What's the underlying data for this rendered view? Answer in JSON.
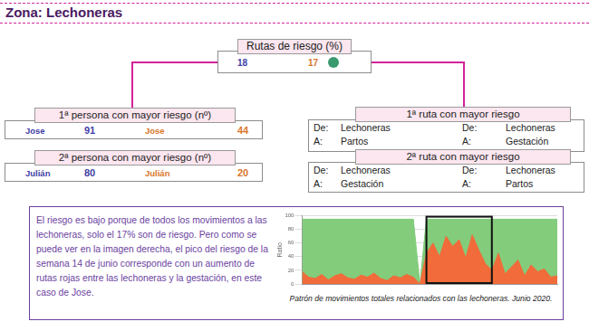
{
  "header": {
    "title": "Zona: Lechoneras"
  },
  "risk_routes": {
    "label": "Rutas de riesgo (%)",
    "values": [
      {
        "value": 18,
        "color": "#3f3fa6"
      },
      {
        "value": 17,
        "color": "#d9762b"
      }
    ],
    "indicator_color": "#3a9a6e"
  },
  "persons": [
    {
      "label": "1ª persona con mayor riesgo (nº)",
      "entries": [
        {
          "name": "Jose",
          "value": 91,
          "color": "#3f3fa6"
        },
        {
          "name": "Jose",
          "value": 44,
          "color": "#d9762b"
        }
      ]
    },
    {
      "label": "2ª persona con mayor riesgo (nº)",
      "entries": [
        {
          "name": "Julián",
          "value": 80,
          "color": "#3f3fa6"
        },
        {
          "name": "Julián",
          "value": 20,
          "color": "#d9762b"
        }
      ]
    }
  ],
  "routes": [
    {
      "label": "1ª ruta con mayor riesgo",
      "entries": [
        {
          "from_label": "De:",
          "from": "Lechoneras",
          "to_label": "A:",
          "to": "Partos"
        },
        {
          "from_label": "De:",
          "from": "Lechoneras",
          "to_label": "A:",
          "to": "Gestación"
        }
      ]
    },
    {
      "label": "2ª ruta con mayor riesgo",
      "entries": [
        {
          "from_label": "De:",
          "from": "Lechoneras",
          "to_label": "A:",
          "to": "Gestación"
        },
        {
          "from_label": "De:",
          "from": "Lechoneras",
          "to_label": "A:",
          "to": "Partos"
        }
      ]
    }
  ],
  "note": {
    "text": "El riesgo es bajo porque de todos los movimientos a las lechoneras, solo el 17% son de riesgo. Pero como se puede ver en la imagen derecha, el pico del riesgo de la semana 14 de junio corresponde con un aumento de rutas rojas entre las lechoneras y la gestación, en este caso de Jose.",
    "caption": "Patrón de movimientos totales relacionados con las lechoneras. Junio 2020."
  },
  "chart_data": {
    "type": "line",
    "categories": [
      null,
      null,
      null,
      null,
      null,
      null,
      null,
      null,
      null,
      null,
      null,
      null,
      null,
      null,
      null,
      null,
      null,
      null,
      null,
      null,
      null,
      null,
      null,
      null,
      null,
      null,
      null,
      null,
      null,
      null,
      null,
      null,
      null,
      null,
      null,
      null,
      null,
      null,
      null,
      null
    ],
    "series": [
      {
        "color": "#f26b3a",
        "values": [
          18,
          10,
          8,
          14,
          6,
          12,
          15,
          9,
          7,
          13,
          10,
          16,
          8,
          5,
          12,
          9,
          14,
          10,
          0,
          45,
          60,
          40,
          70,
          55,
          65,
          38,
          72,
          50,
          30,
          20,
          45,
          15,
          25,
          35,
          12,
          28,
          18,
          22,
          10,
          12
        ]
      },
      {
        "color": "#82cc7c",
        "values": [
          95,
          95,
          95,
          95,
          95,
          95,
          95,
          95,
          95,
          95,
          95,
          95,
          95,
          95,
          95,
          95,
          95,
          95,
          0,
          95,
          95,
          95,
          95,
          95,
          95,
          95,
          95,
          95,
          95,
          95,
          95,
          95,
          95,
          95,
          95,
          95,
          95,
          95,
          95,
          95
        ]
      }
    ],
    "ylim": [
      0,
      100
    ],
    "yticks": [
      0,
      20,
      40,
      60,
      80,
      100
    ],
    "y_label": "Ratio",
    "grid": true,
    "tick_labels": "y",
    "highlight": [
      19,
      29
    ]
  }
}
